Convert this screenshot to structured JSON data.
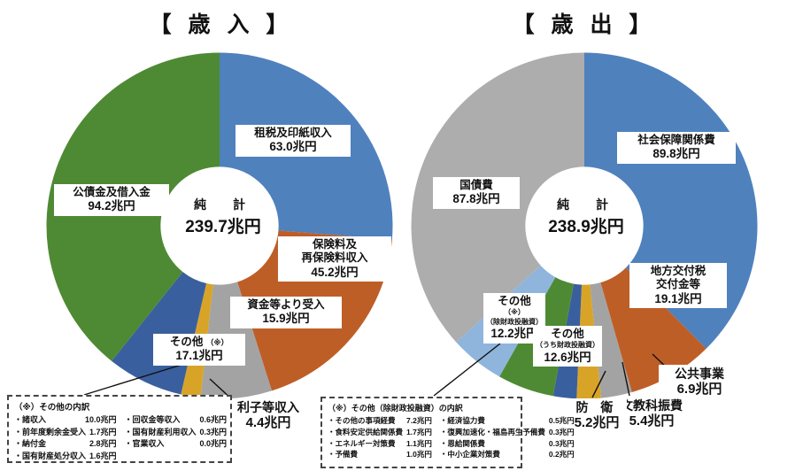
{
  "chart_data": [
    {
      "type": "pie",
      "variant": "donut",
      "title": "【 歳 入 】",
      "center_label": "純 計",
      "center_value": "239.7兆円",
      "total": 239.7,
      "unit": "兆円",
      "start": "top",
      "direction": "clockwise",
      "labels": [
        "租税及印紙収入",
        "保険料及再保険料収入",
        "資金等より受入",
        "利子等収入",
        "その他（※）",
        "公債金及借入金"
      ],
      "values": [
        63.0,
        45.2,
        15.9,
        4.4,
        17.1,
        94.2
      ],
      "colors": [
        "#4F81BD",
        "#BE5E27",
        "#A3A3A3",
        "#D8A428",
        "#3A5F9E",
        "#4E8A33"
      ]
    },
    {
      "type": "pie",
      "variant": "donut",
      "title": "【 歳 出 】",
      "center_label": "純 計",
      "center_value": "238.9兆円",
      "total": 238.9,
      "unit": "兆円",
      "start": "top",
      "direction": "clockwise",
      "labels": [
        "社会保障関係費",
        "地方交付税交付金等",
        "公共事業",
        "文教科振費",
        "防衛",
        "その他（うち財政投融資）",
        "その他（※）（除財政投融資）",
        "国債費"
      ],
      "values": [
        89.8,
        19.1,
        6.9,
        5.4,
        5.2,
        12.6,
        12.2,
        87.8
      ],
      "colors": [
        "#4F81BD",
        "#BE5E27",
        "#A3A3A3",
        "#D8A428",
        "#3A5F9E",
        "#4E8A33",
        "#8FB5DC",
        "#ADADAD"
      ]
    }
  ],
  "revenue": {
    "title": "【 歳 入 】",
    "center": {
      "label": "純　計",
      "value": "239.7兆円"
    },
    "slice_labels": {
      "tax": {
        "name": "租税及印紙収入",
        "value": "63.0兆円"
      },
      "insurance": {
        "name": "保険料及\n再保険料収入",
        "value": "45.2兆円"
      },
      "funds": {
        "name": "資金等より受入",
        "value": "15.9兆円"
      },
      "other": {
        "name": "その他",
        "note": "（※）",
        "value": "17.1兆円"
      },
      "bonds": {
        "name": "公債金及借入金",
        "value": "94.2兆円"
      },
      "interest": {
        "name": "利子等収入",
        "value": "4.4兆円"
      }
    },
    "footnote": {
      "title": "（※）その他の内訳",
      "col1": [
        {
          "n": "・諸収入",
          "v": "10.0兆円"
        },
        {
          "n": "・前年度剰余金受入",
          "v": "1.7兆円"
        },
        {
          "n": "・納付金",
          "v": "2.8兆円"
        },
        {
          "n": "・国有財産処分収入",
          "v": "1.6兆円"
        }
      ],
      "col2": [
        {
          "n": "・回収金等収入",
          "v": "0.6兆円"
        },
        {
          "n": "・国有財産利用収入",
          "v": "0.3兆円"
        },
        {
          "n": "・官業収入",
          "v": "0.0兆円"
        }
      ]
    }
  },
  "expenditure": {
    "title": "【 歳 出 】",
    "center": {
      "label": "純　計",
      "value": "238.9兆円"
    },
    "slice_labels": {
      "social": {
        "name": "社会保障関係費",
        "value": "89.8兆円"
      },
      "debt": {
        "name": "国債費",
        "value": "87.8兆円"
      },
      "localtax": {
        "name": "地方交付税\n交付金等",
        "value": "19.1兆円"
      },
      "public_works": {
        "name": "公共事業",
        "value": "6.9兆円"
      },
      "education": {
        "name": "文教科振費",
        "value": "5.4兆円"
      },
      "defense": {
        "name": "防 衛",
        "value": "5.2兆円"
      },
      "other_incl": {
        "name": "その他",
        "note": "（うち財政投融資）",
        "value": "12.6兆円"
      },
      "other_excl": {
        "name": "その他",
        "note1": "（※）",
        "note2": "（除財政投融資）",
        "value": "12.2兆円"
      }
    },
    "footnote": {
      "title": "（※）その他（除財政投融資）の内訳",
      "col1": [
        {
          "n": "・その他の事項経費",
          "v": "7.2兆円"
        },
        {
          "n": "・食料安定供給関係費",
          "v": "1.7兆円"
        },
        {
          "n": "・エネルギー対策費",
          "v": "1.1兆円"
        },
        {
          "n": "・予備費",
          "v": "1.0兆円"
        }
      ],
      "col2": [
        {
          "n": "・経済協力費",
          "v": "0.5兆円"
        },
        {
          "n": "・復興加速化・福島再生予備費",
          "v": "0.3兆円"
        },
        {
          "n": "・恩給関係費",
          "v": "0.3兆円"
        },
        {
          "n": "・中小企業対策費",
          "v": "0.2兆円"
        }
      ]
    }
  }
}
